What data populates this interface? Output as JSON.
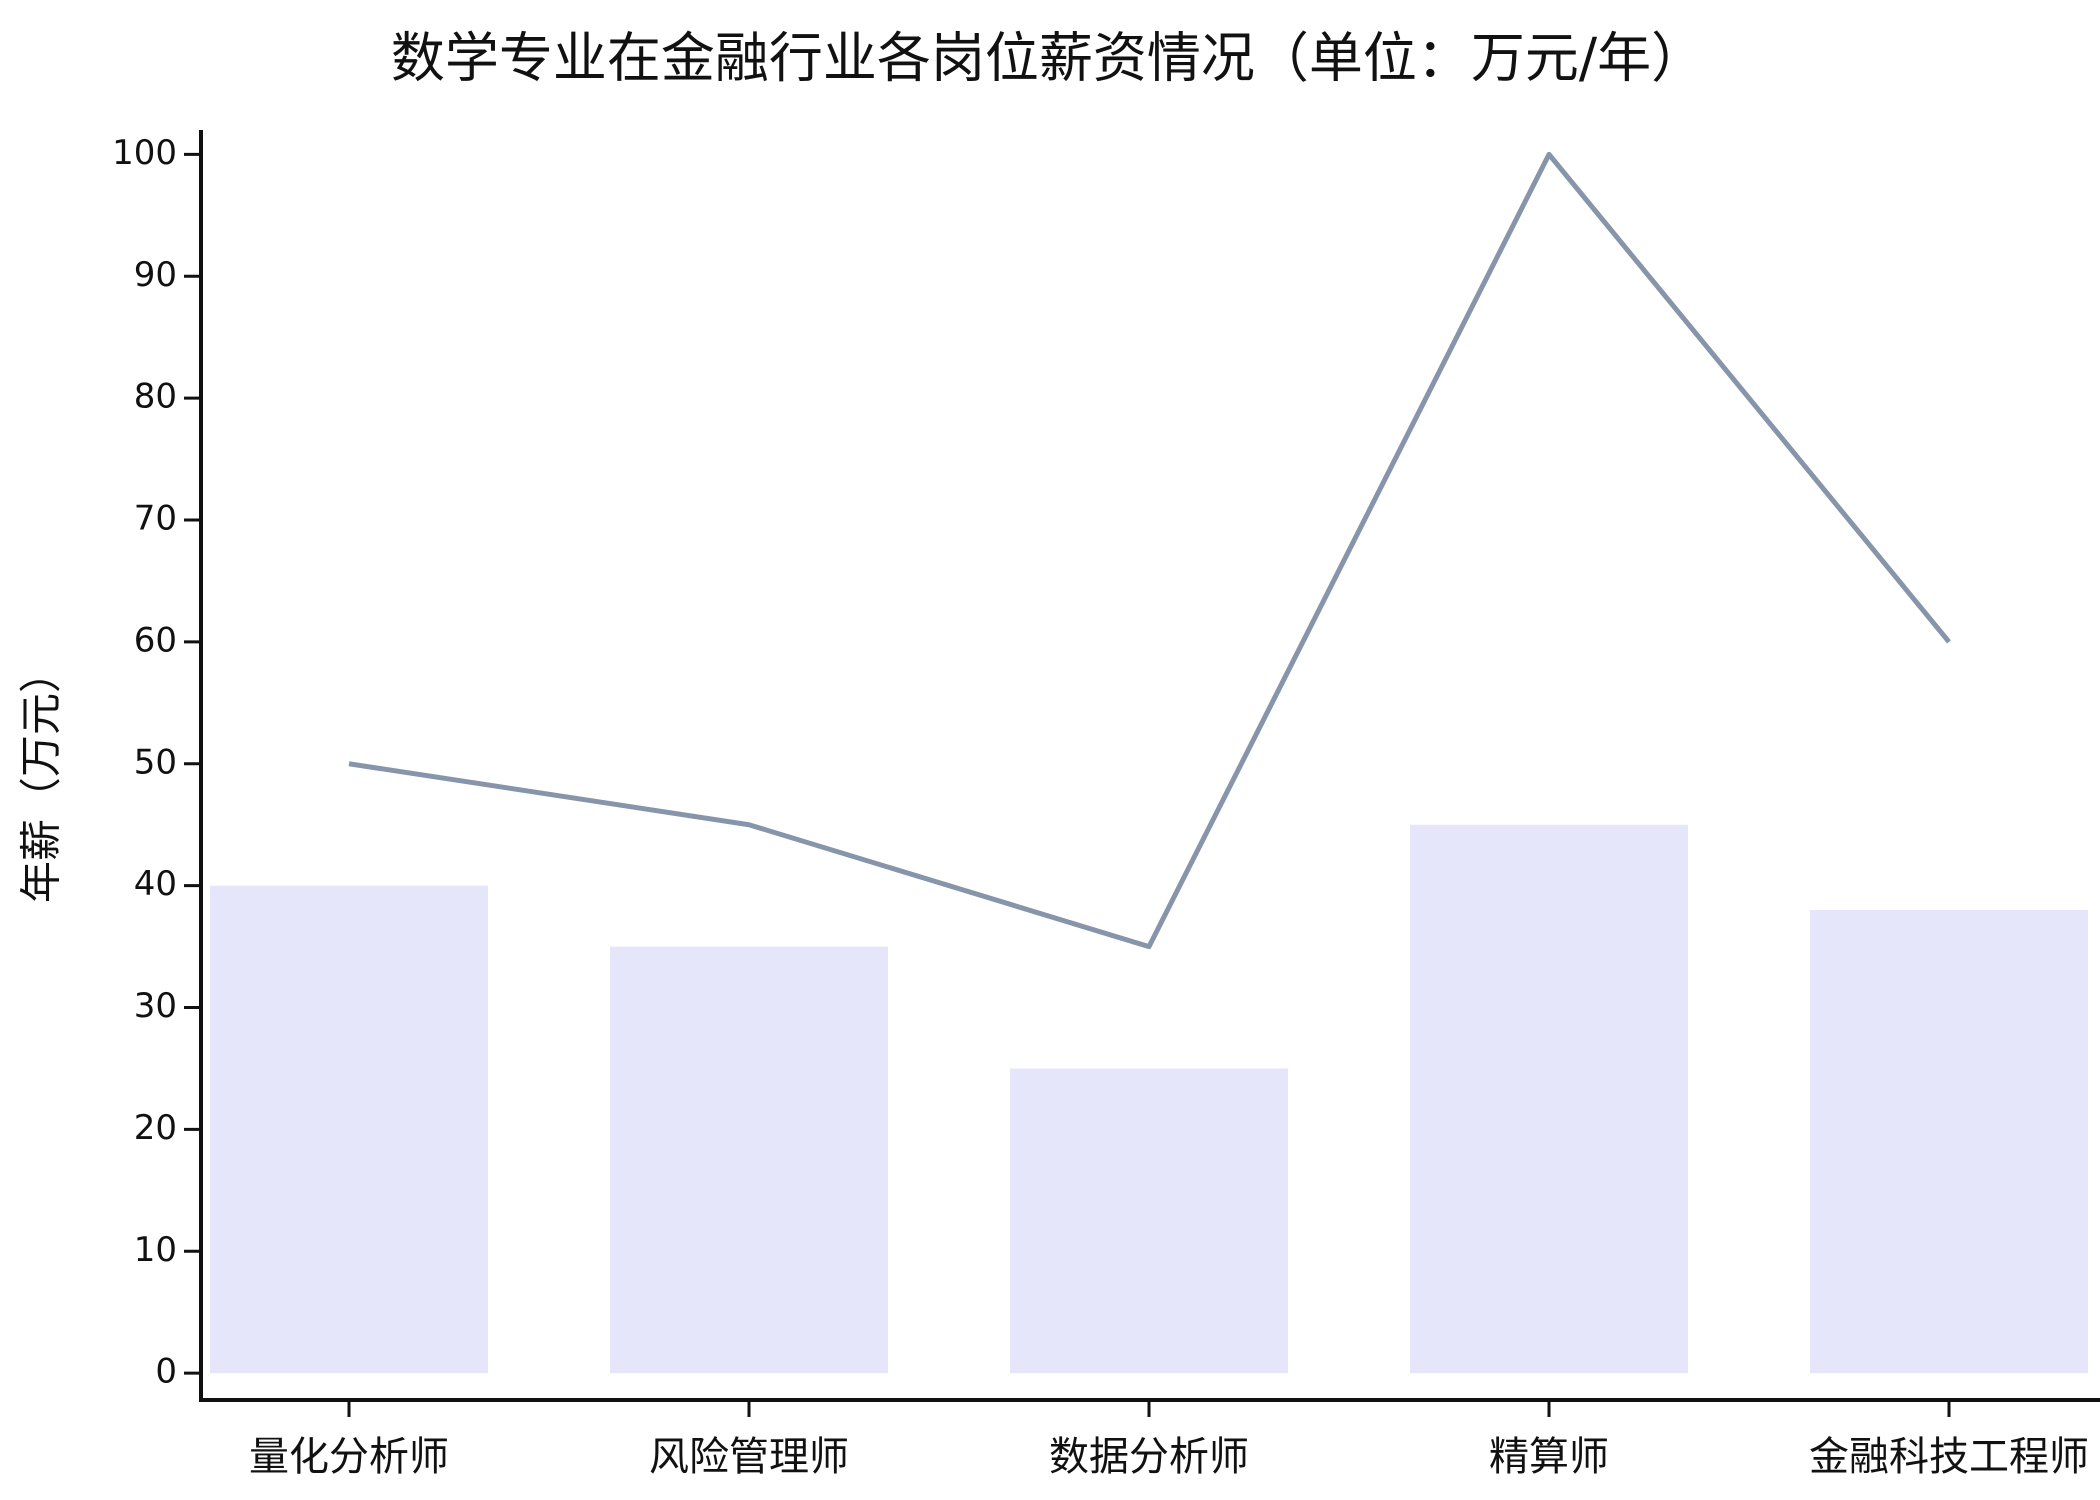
{
  "chart_data": {
    "type": "combo",
    "title": "数学专业在金融行业各岗位薪资情况（单位：万元/年）",
    "ylabel": "年薪（万元）",
    "categories": [
      "量化分析师",
      "风险管理师",
      "数据分析师",
      "精算师",
      "金融科技工程师"
    ],
    "series": [
      {
        "type": "bar",
        "color": "#e6e6fa",
        "values": [
          40,
          35,
          25,
          45,
          38
        ]
      },
      {
        "type": "line",
        "color": "#8795aa",
        "values": [
          50,
          45,
          35,
          100,
          60
        ]
      }
    ],
    "ylim": [
      -2.2,
      102
    ],
    "yticks": [
      0,
      10,
      20,
      30,
      40,
      50,
      60,
      70,
      80,
      90,
      100
    ],
    "grid": false
  }
}
